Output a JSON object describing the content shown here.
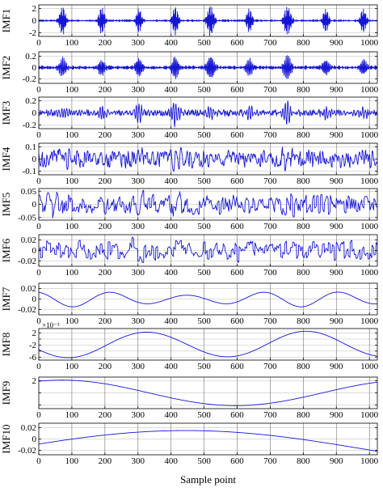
{
  "colors": {
    "signal": "#1515d6",
    "axis": "#000000",
    "grid": "#000000",
    "background": "#ffffff"
  },
  "chart_data": {
    "type": "line",
    "layout": "stacked-subplots",
    "xlabel": "Sample point",
    "xlim": [
      0,
      1024
    ],
    "xticks": [
      0,
      100,
      200,
      300,
      400,
      500,
      600,
      700,
      800,
      900,
      1000
    ],
    "xtick_labels": [
      "0",
      "100",
      "200",
      "300",
      "400",
      "500",
      "600",
      "700",
      "800",
      "900",
      "1000"
    ],
    "grid": true,
    "panels": [
      {
        "ylabel": "IMF1",
        "ylim": [
          -2.6,
          2.6
        ],
        "yticks": [
          -2,
          0,
          2
        ],
        "ytick_labels": [
          "-2",
          "0",
          "2"
        ],
        "exponent_label": "",
        "signal": {
          "kind": "bursts",
          "noise": 0.12,
          "bursts": [
            {
              "center": 72,
              "width": 10,
              "amp": 2.3,
              "freq": 0.42
            },
            {
              "center": 190,
              "width": 10,
              "amp": 2.2,
              "freq": 0.42
            },
            {
              "center": 303,
              "width": 10,
              "amp": 2.0,
              "freq": 0.42
            },
            {
              "center": 413,
              "width": 10,
              "amp": 2.3,
              "freq": 0.42
            },
            {
              "center": 520,
              "width": 12,
              "amp": 2.5,
              "freq": 0.42
            },
            {
              "center": 637,
              "width": 10,
              "amp": 2.0,
              "freq": 0.42
            },
            {
              "center": 752,
              "width": 12,
              "amp": 2.4,
              "freq": 0.42
            },
            {
              "center": 868,
              "width": 10,
              "amp": 2.0,
              "freq": 0.42
            },
            {
              "center": 982,
              "width": 10,
              "amp": 2.0,
              "freq": 0.42
            }
          ]
        }
      },
      {
        "ylabel": "IMF2",
        "ylim": [
          -0.28,
          0.28
        ],
        "yticks": [
          -0.2,
          0,
          0.2
        ],
        "ytick_labels": [
          "-0.2",
          "0",
          "0.2"
        ],
        "exponent_label": "",
        "signal": {
          "kind": "bursts",
          "noise": 0.025,
          "bursts": [
            {
              "center": 72,
              "width": 12,
              "amp": 0.16,
              "freq": 0.25
            },
            {
              "center": 190,
              "width": 12,
              "amp": 0.14,
              "freq": 0.25
            },
            {
              "center": 303,
              "width": 12,
              "amp": 0.18,
              "freq": 0.25
            },
            {
              "center": 413,
              "width": 12,
              "amp": 0.2,
              "freq": 0.25
            },
            {
              "center": 520,
              "width": 13,
              "amp": 0.22,
              "freq": 0.25
            },
            {
              "center": 637,
              "width": 12,
              "amp": 0.15,
              "freq": 0.25
            },
            {
              "center": 752,
              "width": 13,
              "amp": 0.21,
              "freq": 0.25
            },
            {
              "center": 868,
              "width": 12,
              "amp": 0.15,
              "freq": 0.25
            },
            {
              "center": 982,
              "width": 12,
              "amp": 0.14,
              "freq": 0.25
            }
          ]
        }
      },
      {
        "ylabel": "IMF3",
        "ylim": [
          -0.26,
          0.26
        ],
        "yticks": [
          -0.2,
          0,
          0.2
        ],
        "ytick_labels": [
          "-0.2",
          "0",
          "0.2"
        ],
        "exponent_label": "",
        "signal": {
          "kind": "bursts",
          "noise": 0.04,
          "noise_freq": 0.13,
          "bursts": [
            {
              "center": 72,
              "width": 14,
              "amp": 0.1,
              "freq": 0.13
            },
            {
              "center": 190,
              "width": 14,
              "amp": 0.1,
              "freq": 0.13
            },
            {
              "center": 303,
              "width": 14,
              "amp": 0.17,
              "freq": 0.13
            },
            {
              "center": 413,
              "width": 14,
              "amp": 0.2,
              "freq": 0.13
            },
            {
              "center": 520,
              "width": 15,
              "amp": 0.12,
              "freq": 0.13
            },
            {
              "center": 637,
              "width": 14,
              "amp": 0.1,
              "freq": 0.13
            },
            {
              "center": 752,
              "width": 15,
              "amp": 0.2,
              "freq": 0.13
            },
            {
              "center": 868,
              "width": 14,
              "amp": 0.1,
              "freq": 0.13
            },
            {
              "center": 982,
              "width": 14,
              "amp": 0.08,
              "freq": 0.13
            }
          ]
        }
      },
      {
        "ylabel": "IMF4",
        "ylim": [
          -0.13,
          0.13
        ],
        "yticks": [
          -0.1,
          0,
          0.1
        ],
        "ytick_labels": [
          "-0.1",
          "0",
          "0.1"
        ],
        "exponent_label": "",
        "signal": {
          "kind": "bursts",
          "noise": 0.055,
          "noise_freq": 0.065,
          "bursts": [
            {
              "center": 72,
              "width": 22,
              "amp": 0.03,
              "freq": 0.065
            },
            {
              "center": 303,
              "width": 20,
              "amp": 0.07,
              "freq": 0.065
            },
            {
              "center": 413,
              "width": 20,
              "amp": 0.08,
              "freq": 0.065
            },
            {
              "center": 752,
              "width": 22,
              "amp": 0.04,
              "freq": 0.065
            }
          ]
        }
      },
      {
        "ylabel": "IMF5",
        "ylim": [
          -0.06,
          0.06
        ],
        "yticks": [
          -0.05,
          0,
          0.05
        ],
        "ytick_labels": [
          "-0.05",
          "0",
          "0.05"
        ],
        "exponent_label": "",
        "signal": {
          "kind": "bursts",
          "noise": 0.028,
          "noise_freq": 0.033,
          "bursts": [
            {
              "center": 40,
              "width": 30,
              "amp": 0.02,
              "freq": 0.033
            },
            {
              "center": 303,
              "width": 30,
              "amp": 0.025,
              "freq": 0.033
            },
            {
              "center": 413,
              "width": 30,
              "amp": 0.025,
              "freq": 0.033
            },
            {
              "center": 752,
              "width": 30,
              "amp": 0.015,
              "freq": 0.033
            }
          ]
        }
      },
      {
        "ylabel": "IMF6",
        "ylim": [
          -0.03,
          0.03
        ],
        "yticks": [
          -0.02,
          0,
          0.02
        ],
        "ytick_labels": [
          "-0.02",
          "0",
          "0.02"
        ],
        "exponent_label": "",
        "signal": {
          "kind": "bursts",
          "noise": 0.014,
          "noise_freq": 0.0165,
          "bursts": [
            {
              "center": 300,
              "width": 55,
              "amp": 0.01,
              "freq": 0.0165
            },
            {
              "center": 640,
              "width": 55,
              "amp": 0.012,
              "freq": 0.0165
            }
          ]
        }
      },
      {
        "ylabel": "IMF7",
        "ylim": [
          -0.03,
          0.03
        ],
        "yticks": [
          -0.02,
          0,
          0.02
        ],
        "ytick_labels": [
          "-0.02",
          "0",
          "0.02"
        ],
        "exponent_label": "",
        "signal": {
          "kind": "sine",
          "amp": 0.011,
          "period": 230,
          "phase": 1.9,
          "amp_mod": 0.35
        }
      },
      {
        "ylabel": "IMF8",
        "ylim": [
          -7,
          3.5
        ],
        "yticks": [
          -6,
          -4,
          -2,
          0,
          2
        ],
        "ytick_labels": [
          "-6",
          "",
          "-2",
          "",
          "2"
        ],
        "exponent_label": "×10⁻³",
        "signal": {
          "kind": "sine",
          "amp": 4.2,
          "period": 480,
          "phase": 3.55,
          "offset": -1.8,
          "amp_mod": 0.05
        }
      },
      {
        "ylabel": "IMF9",
        "ylim": [
          -2.6,
          2.6
        ],
        "yticks": [
          -2,
          0,
          2
        ],
        "ytick_labels": [
          "",
          "",
          "2"
        ],
        "exponent_label": "",
        "signal": {
          "kind": "sine",
          "amp": 2.1,
          "period": 1050,
          "phase": 1.15,
          "offset": 0.0,
          "amp_mod": 0
        }
      },
      {
        "ylabel": "IMF10",
        "ylim": [
          -0.028,
          0.028
        ],
        "yticks": [
          -0.02,
          0,
          0.02
        ],
        "ytick_labels": [
          "-0.02",
          "0",
          "0.02"
        ],
        "exponent_label": "",
        "signal": {
          "kind": "sine",
          "amp": 0.034,
          "period": 2200,
          "phase": 0.3,
          "offset": -0.019,
          "amp_mod": 0
        }
      }
    ]
  }
}
